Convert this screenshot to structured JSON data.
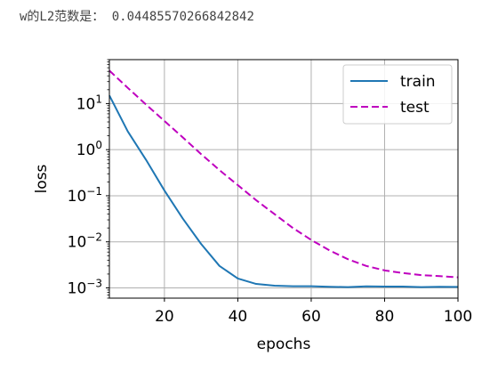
{
  "output": {
    "label": "w的L2范数是：",
    "value": "0.04485570266842842"
  },
  "chart_data": {
    "type": "line",
    "title": "",
    "xlabel": "epochs",
    "ylabel": "loss",
    "xlim": [
      5,
      100
    ],
    "ylim": [
      0.0006,
      90
    ],
    "yscale": "log",
    "grid": true,
    "legend_position": "top-right",
    "x_ticks": [
      20,
      40,
      60,
      80,
      100
    ],
    "x_tick_labels": [
      "20",
      "40",
      "60",
      "80",
      "100"
    ],
    "y_ticks": [
      0.001,
      0.01,
      0.1,
      1,
      10
    ],
    "y_tick_labels": [
      {
        "base": "10",
        "exp": "−3"
      },
      {
        "base": "10",
        "exp": "−2"
      },
      {
        "base": "10",
        "exp": "−1"
      },
      {
        "base": "10",
        "exp": "0"
      },
      {
        "base": "10",
        "exp": "1"
      }
    ],
    "x": [
      5,
      10,
      15,
      20,
      25,
      30,
      35,
      40,
      45,
      50,
      55,
      60,
      65,
      70,
      75,
      80,
      85,
      90,
      95,
      100
    ],
    "series": [
      {
        "name": "train",
        "color": "#1f77b4",
        "dash": "solid",
        "values": [
          15,
          2.5,
          0.6,
          0.13,
          0.032,
          0.009,
          0.003,
          0.0016,
          0.00122,
          0.00112,
          0.00109,
          0.00109,
          0.00106,
          0.00104,
          0.00108,
          0.00107,
          0.00107,
          0.00104,
          0.00106,
          0.00105
        ]
      },
      {
        "name": "test",
        "color": "#bf00bf",
        "dash": "dashed",
        "values": [
          52,
          22,
          9.5,
          4.2,
          1.85,
          0.8,
          0.36,
          0.17,
          0.08,
          0.04,
          0.02,
          0.011,
          0.0065,
          0.0042,
          0.003,
          0.0024,
          0.0021,
          0.0019,
          0.0018,
          0.0017
        ]
      }
    ]
  }
}
